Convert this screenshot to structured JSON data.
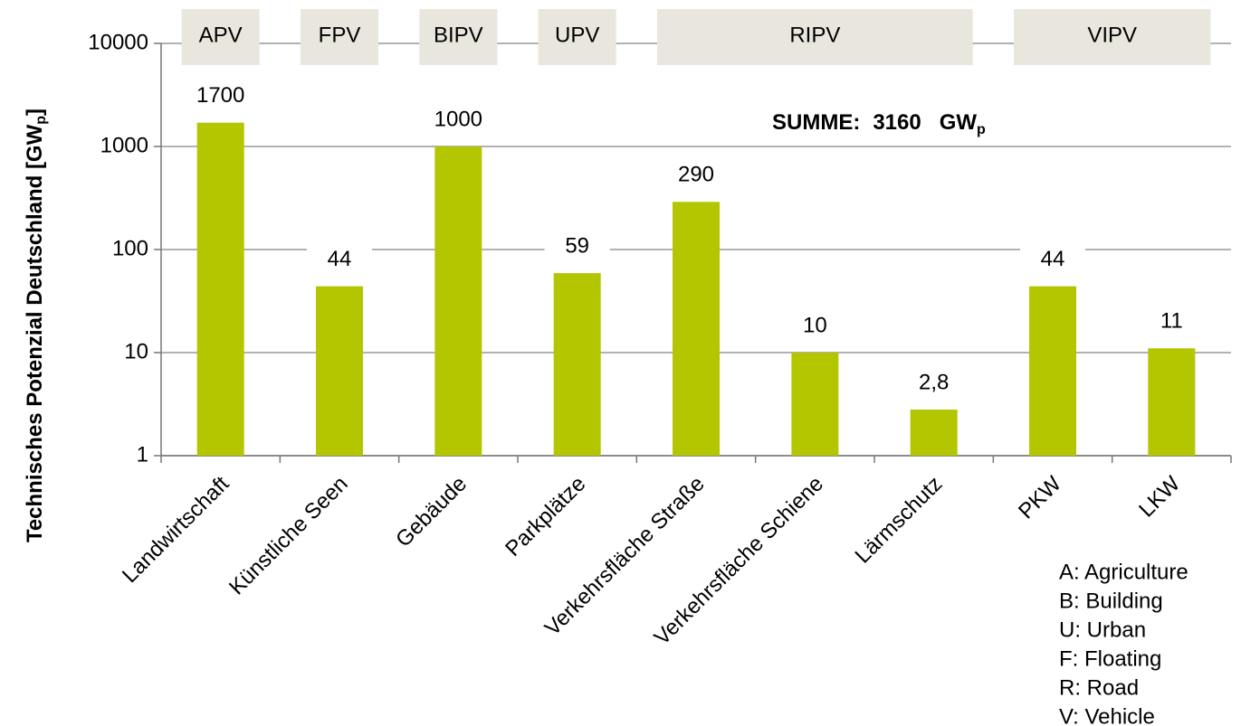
{
  "chart_data": {
    "type": "bar",
    "log_scale": true,
    "color": "#b3c600",
    "ylabel": {
      "text": "Technisches Potenzial Deutschland [GW",
      "sub": "p",
      "end": "]"
    },
    "categories": [
      "Landwirtschaft",
      "Künstliche Seen",
      "Gebäude",
      "Parkplätze",
      "Verkehrsfläche Straße",
      "Verkehrsfläche Schiene",
      "Lärmschutz",
      "PKW",
      "LKW"
    ],
    "values": [
      1700,
      44,
      1000,
      59,
      290,
      10,
      2.8,
      44,
      11
    ],
    "value_labels": [
      "1700",
      "44",
      "1000",
      "59",
      "290",
      "10",
      "2,8",
      "44",
      "11"
    ],
    "ylim": [
      1,
      10000
    ],
    "yticks": [
      1,
      10,
      100,
      1000,
      10000
    ],
    "grid": true,
    "groups": [
      {
        "label": "APV",
        "categories": [
          "Landwirtschaft"
        ]
      },
      {
        "label": "FPV",
        "categories": [
          "Künstliche Seen"
        ]
      },
      {
        "label": "BIPV",
        "categories": [
          "Gebäude"
        ]
      },
      {
        "label": "UPV",
        "categories": [
          "Parkplätze"
        ]
      },
      {
        "label": "RIPV",
        "categories": [
          "Verkehrsfläche Straße",
          "Verkehrsfläche Schiene",
          "Lärmschutz"
        ]
      },
      {
        "label": "VIPV",
        "categories": [
          "PKW",
          "LKW"
        ]
      }
    ],
    "annotation": {
      "label": "SUMME:",
      "value": 3160,
      "unit": "GW",
      "unit_sub": "p"
    },
    "notes": [
      "A: Agriculture",
      "B: Building",
      "U: Urban",
      "F: Floating",
      "R: Road",
      "V: Vehicle"
    ]
  }
}
